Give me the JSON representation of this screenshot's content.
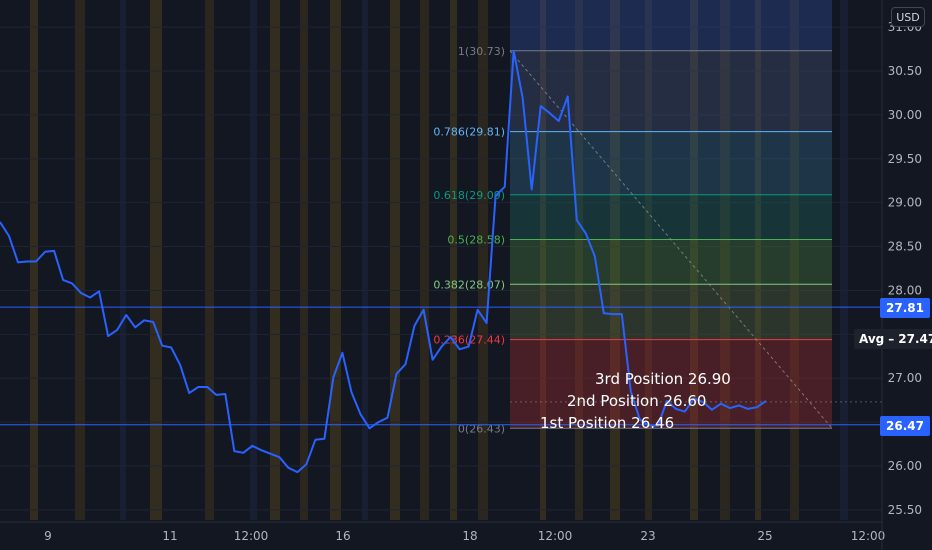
{
  "currency_label": "USD",
  "colors": {
    "background": "#131722",
    "line": "#2962ff",
    "price_tag": "#2962ff",
    "fib_0": "#787b86",
    "fib_0236": "#f23645",
    "fib_0382": "#81c784",
    "fib_05": "#4caf50",
    "fib_0618": "#089981",
    "fib_0786": "#64b5f6",
    "fib_1": "#787b86"
  },
  "chart_data": {
    "type": "line",
    "ylim": [
      25.5,
      31.0
    ],
    "y_ticks": [
      "25.50",
      "26.00",
      "26.50",
      "27.00",
      "27.50",
      "28.00",
      "28.50",
      "29.00",
      "29.50",
      "30.00",
      "30.50",
      "31.00"
    ],
    "x_ticks": [
      "9",
      "11",
      "12:00",
      "16",
      "18",
      "12:00",
      "23",
      "25",
      "12:00"
    ],
    "series": [
      {
        "values": [
          28.78,
          28.62,
          28.32,
          28.33,
          28.33,
          28.44,
          28.45,
          28.12,
          28.08,
          27.97,
          27.92,
          27.99,
          27.48,
          27.55,
          27.72,
          27.58,
          27.66,
          27.64,
          27.37,
          27.35,
          27.15,
          26.83,
          26.9,
          26.9,
          26.81,
          26.82,
          26.17,
          26.15,
          26.23,
          26.18,
          26.14,
          26.1,
          25.98,
          25.93,
          26.02,
          26.3,
          26.31,
          27.01,
          27.29,
          26.84,
          26.59,
          26.43,
          26.5,
          26.55,
          27.05,
          27.16,
          27.6,
          27.78,
          27.21,
          27.36,
          27.47,
          27.33,
          27.36,
          27.78,
          27.63,
          29.08,
          29.18,
          30.73,
          30.19,
          29.15,
          30.1,
          30.02,
          29.93,
          30.21,
          28.8,
          28.65,
          28.39,
          27.74,
          27.73,
          27.73,
          26.85,
          26.53,
          26.46,
          26.46,
          26.74,
          26.65,
          26.62,
          26.77,
          26.73,
          26.64,
          26.71,
          26.66,
          26.69,
          26.65,
          26.67,
          26.74
        ]
      }
    ],
    "horizontal_lines": [
      {
        "value": 27.81,
        "label": "27.81"
      },
      {
        "value": 26.47,
        "label": "26.47"
      }
    ],
    "avg": {
      "label": "Avg",
      "value": "27.47"
    },
    "fibonacci": {
      "levels": [
        {
          "ratio": "1",
          "price": "30.73",
          "label": "1(30.73)",
          "value": 30.73
        },
        {
          "ratio": "0.786",
          "price": "29.81",
          "label": "0.786(29.81)",
          "value": 29.81
        },
        {
          "ratio": "0.618",
          "price": "29.09",
          "label": "0.618(29.09)",
          "value": 29.09
        },
        {
          "ratio": "0.5",
          "price": "28.58",
          "label": "0.5(28.58)",
          "value": 28.58
        },
        {
          "ratio": "0.382",
          "price": "28.07",
          "label": "0.382(28.07)",
          "value": 28.07
        },
        {
          "ratio": "0.236",
          "price": "27.44",
          "label": "0.236(27.44)",
          "value": 27.44
        },
        {
          "ratio": "0",
          "price": "26.43",
          "label": "0(26.43)",
          "value": 26.43
        }
      ]
    },
    "annotations": [
      {
        "text": "3rd Position 26.90"
      },
      {
        "text": "2nd Position 26.60"
      },
      {
        "text": "1st Position 26.46"
      }
    ]
  }
}
